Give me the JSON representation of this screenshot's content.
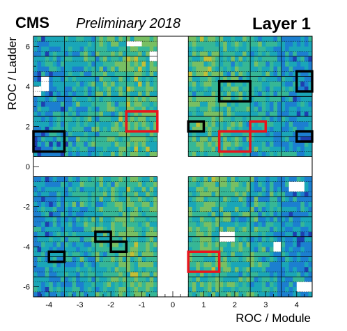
{
  "header": {
    "experiment": "CMS",
    "status": "Preliminary 2018",
    "layer": "Layer 1"
  },
  "chart_data": {
    "type": "heatmap",
    "xlabel": "ROC / Module",
    "ylabel": "ROC / Ladder",
    "xlim": [
      -4.5,
      4.5
    ],
    "ylim": [
      -6.5,
      6.5
    ],
    "xticks": [
      "-4",
      "-3",
      "-2",
      "-1",
      "0",
      "1",
      "2",
      "3",
      "4"
    ],
    "yticks": [
      "-6",
      "-4",
      "-2",
      "0",
      "2",
      "4",
      "6"
    ],
    "colormap": [
      "#1e3fb0",
      "#1c7fd0",
      "#1aa6b8",
      "#36b796",
      "#78bf63",
      "#c2bf36",
      "#f7d52c"
    ],
    "empty_regions": [
      {
        "x": [
          -0.5,
          0.5
        ],
        "y": [
          -6.5,
          6.5
        ]
      },
      {
        "x": [
          -4.5,
          4.5
        ],
        "y": [
          -0.5,
          0.5
        ]
      }
    ],
    "grid": "dotted ROC-row lines, solid module/ladder borders",
    "flagged_black": [
      {
        "x": [
          -4.5,
          -3.5
        ],
        "y": [
          0.75,
          1.75
        ]
      },
      {
        "x": [
          0.5,
          1.0
        ],
        "y": [
          1.75,
          2.25
        ]
      },
      {
        "x": [
          1.5,
          2.5
        ],
        "y": [
          3.25,
          4.25
        ]
      },
      {
        "x": [
          4.0,
          4.5
        ],
        "y": [
          3.75,
          4.75
        ]
      },
      {
        "x": [
          4.0,
          4.5
        ],
        "y": [
          1.25,
          1.75
        ]
      },
      {
        "x": [
          -2.5,
          -2.0
        ],
        "y": [
          -3.75,
          -3.25
        ]
      },
      {
        "x": [
          -2.0,
          -1.5
        ],
        "y": [
          -4.25,
          -3.75
        ]
      },
      {
        "x": [
          -4.0,
          -3.5
        ],
        "y": [
          -4.75,
          -4.25
        ]
      }
    ],
    "flagged_red": [
      {
        "x": [
          -1.5,
          -0.5
        ],
        "y": [
          1.75,
          2.75
        ]
      },
      {
        "x": [
          1.5,
          2.5
        ],
        "y": [
          0.75,
          1.75
        ]
      },
      {
        "x": [
          2.5,
          3.0
        ],
        "y": [
          1.75,
          2.25
        ]
      },
      {
        "x": [
          0.5,
          1.5
        ],
        "y": [
          -5.25,
          -4.25
        ]
      }
    ],
    "dead_white": [
      {
        "x": [
          -1.5,
          -1.0
        ],
        "y": [
          6.0,
          6.25
        ]
      },
      {
        "x": [
          -0.75,
          -0.5
        ],
        "y": [
          5.25,
          5.75
        ]
      },
      {
        "x": [
          -4.25,
          -4.0
        ],
        "y": [
          3.75,
          4.5
        ]
      },
      {
        "x": [
          -4.5,
          -4.25
        ],
        "y": [
          3.5,
          4.0
        ]
      },
      {
        "x": [
          3.75,
          4.25
        ],
        "y": [
          -1.25,
          -0.75
        ]
      },
      {
        "x": [
          1.5,
          2.0
        ],
        "y": [
          -3.75,
          -3.25
        ]
      },
      {
        "x": [
          3.25,
          3.5
        ],
        "y": [
          -4.25,
          -3.75
        ]
      },
      {
        "x": [
          4.0,
          4.5
        ],
        "y": [
          -6.25,
          -5.75
        ]
      }
    ]
  }
}
